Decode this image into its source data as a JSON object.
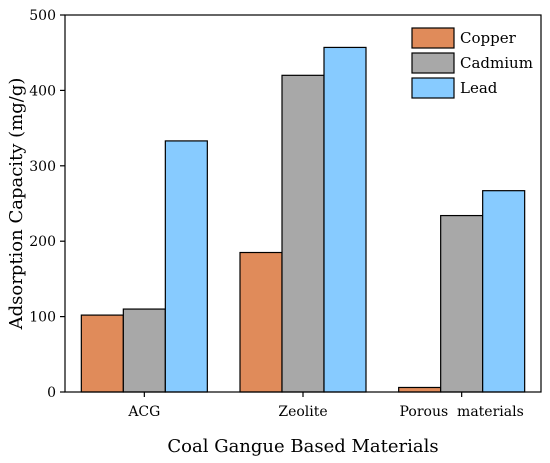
{
  "chart_data": {
    "type": "bar",
    "categories": [
      "ACG",
      "Zeolite",
      "Porous  materials"
    ],
    "series": [
      {
        "name": "Copper",
        "color": "#E08B5A",
        "values": [
          102,
          185,
          6
        ]
      },
      {
        "name": "Cadmium",
        "color": "#A8A8A8",
        "values": [
          110,
          420,
          234
        ]
      },
      {
        "name": "Lead",
        "color": "#87CBFF",
        "values": [
          333,
          457,
          267
        ]
      }
    ],
    "xlabel": "Coal Gangue Based Materials",
    "ylabel": "Adsorption Capacity (mg/g)",
    "ylim": [
      0,
      500
    ],
    "yticks": [
      0,
      100,
      200,
      300,
      400,
      500
    ],
    "legend_position": "top-right",
    "grid": false
  }
}
